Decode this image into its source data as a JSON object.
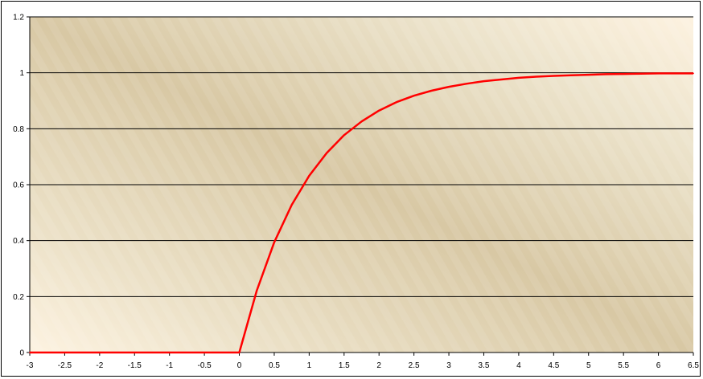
{
  "chart_data": {
    "type": "line",
    "title": "",
    "xlabel": "",
    "ylabel": "",
    "xlim": [
      -3,
      6.5
    ],
    "ylim": [
      0,
      1.2
    ],
    "x_ticks": [
      "-3",
      "-2.5",
      "-2",
      "-1.5",
      "-1",
      "-0.5",
      "0",
      "0.5",
      "1",
      "1.5",
      "2",
      "2.5",
      "3",
      "3.5",
      "4",
      "4.5",
      "5",
      "5.5",
      "6",
      "6.5"
    ],
    "y_ticks": [
      "0",
      "0.2",
      "0.4",
      "0.6",
      "0.8",
      "1",
      "1.2"
    ],
    "grid": "horizontal",
    "legend": "none",
    "series": [
      {
        "color": "#ff0000",
        "x": [
          -3,
          -2.75,
          -2.5,
          -2.25,
          -2,
          -1.75,
          -1.5,
          -1.25,
          -1,
          -0.75,
          -0.5,
          -0.25,
          0,
          0.25,
          0.5,
          0.75,
          1,
          1.25,
          1.5,
          1.75,
          2,
          2.25,
          2.5,
          2.75,
          3,
          3.25,
          3.5,
          3.75,
          4,
          4.25,
          4.5,
          4.75,
          5,
          5.25,
          5.5,
          5.75,
          6,
          6.25,
          6.5
        ],
        "y": [
          0,
          0,
          0,
          0,
          0,
          0,
          0,
          0,
          0,
          0,
          0,
          0,
          0,
          0.221,
          0.394,
          0.528,
          0.632,
          0.713,
          0.777,
          0.826,
          0.865,
          0.895,
          0.918,
          0.936,
          0.95,
          0.961,
          0.97,
          0.976,
          0.982,
          0.986,
          0.989,
          0.991,
          0.993,
          0.995,
          0.996,
          0.997,
          0.998,
          0.998,
          0.998
        ]
      }
    ]
  }
}
